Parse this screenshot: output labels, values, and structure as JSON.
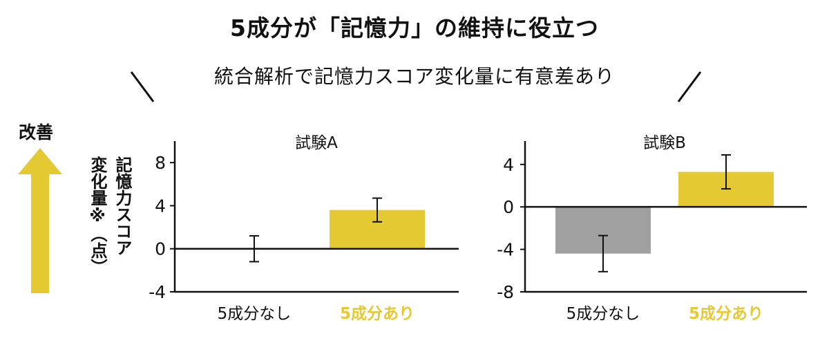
{
  "header": {
    "title": "5成分が「記憶力」の維持に役立つ",
    "subtitle": "統合解析で記憶力スコア変化量に有意差あり"
  },
  "side": {
    "improve_label": "改善",
    "ylabel_line1": "記憶力スコア",
    "ylabel_line2": "変化量※（点）"
  },
  "colors": {
    "highlight": "#E5C933",
    "gray_bar": "#A0A0A0",
    "arrow": "#E5C933",
    "axis": "#111111"
  },
  "chart_data": [
    {
      "type": "bar",
      "title": "試験A",
      "categories": [
        "5成分なし",
        "5成分あり"
      ],
      "values": [
        0.0,
        3.6
      ],
      "error": [
        1.2,
        1.1
      ],
      "bar_colors": [
        "#A0A0A0",
        "#E5C933"
      ],
      "label_colors": [
        "#111111",
        "#E5C933"
      ],
      "ylim": [
        -4,
        10
      ],
      "yticks": [
        8,
        4,
        0,
        -4
      ],
      "ytick_labels": [
        "8",
        "4",
        "0",
        "-4"
      ]
    },
    {
      "type": "bar",
      "title": "試験B",
      "categories": [
        "5成分なし",
        "5成分あり"
      ],
      "values": [
        -4.4,
        3.3
      ],
      "error": [
        1.7,
        1.6
      ],
      "bar_colors": [
        "#A0A0A0",
        "#E5C933"
      ],
      "label_colors": [
        "#111111",
        "#E5C933"
      ],
      "ylim": [
        -8,
        6.2
      ],
      "yticks": [
        4,
        0,
        -4,
        -8
      ],
      "ytick_labels": [
        "4",
        "0",
        "-4",
        "-8"
      ]
    }
  ]
}
